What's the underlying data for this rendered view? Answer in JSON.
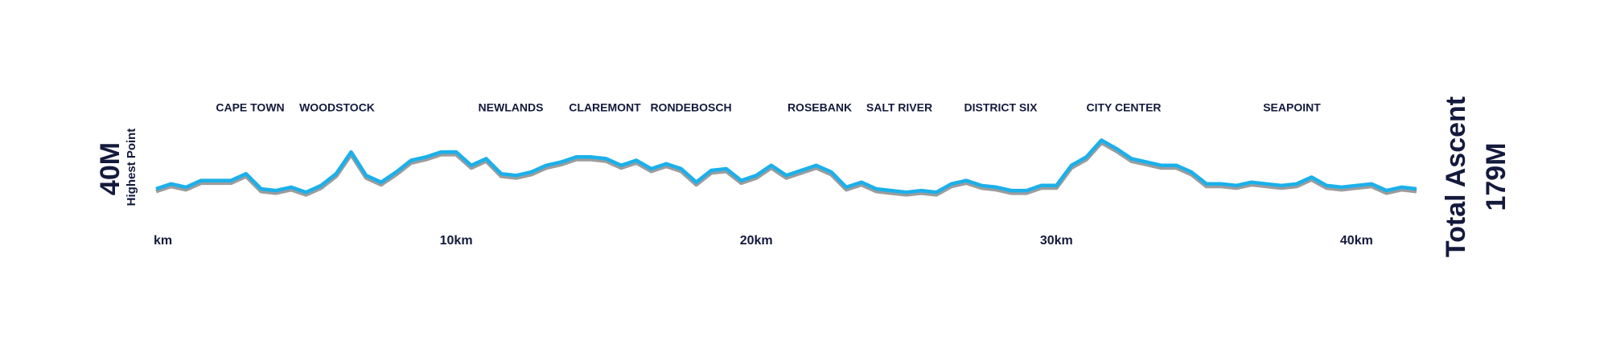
{
  "chart_data": {
    "type": "line",
    "locations": [
      "CAPE TOWN",
      "WOODSTOCK",
      "NEWLANDS",
      "CLAREMONT",
      "RONDEBOSCH",
      "ROSEBANK",
      "SALT RIVER",
      "DISTRICT SIX",
      "CITY CENTER",
      "SEAPOINT"
    ],
    "highest_value": "40M",
    "highest_caption": "Highest Point",
    "total_caption": "Total Ascent",
    "total_value": "179M",
    "x": [
      0,
      0.5,
      1,
      1.5,
      2,
      2.5,
      3,
      3.5,
      4,
      4.5,
      5,
      5.5,
      6,
      6.5,
      7,
      7.5,
      8,
      8.5,
      9,
      9.5,
      10,
      10.5,
      11,
      11.5,
      12,
      12.5,
      13,
      13.5,
      14,
      14.5,
      15,
      15.5,
      16,
      16.5,
      17,
      17.5,
      18,
      18.5,
      19,
      19.5,
      20,
      20.5,
      21,
      21.5,
      22,
      22.5,
      23,
      23.5,
      24,
      24.5,
      25,
      25.5,
      26,
      26.5,
      27,
      27.5,
      28,
      28.5,
      29,
      29.5,
      30,
      30.5,
      31,
      31.5,
      32,
      32.5,
      33,
      33.5,
      34,
      34.5,
      35,
      35.5,
      36,
      36.5,
      37,
      37.5,
      38,
      38.5,
      39,
      39.5,
      40,
      40.5,
      41,
      41.5,
      42
    ],
    "values": [
      11,
      14,
      12,
      16,
      16,
      16,
      20,
      11,
      10,
      12,
      9,
      13,
      20,
      33,
      19,
      15,
      21,
      28,
      30,
      33,
      33,
      25,
      29,
      20,
      19,
      21,
      25,
      27,
      30,
      30,
      29,
      25,
      28,
      23,
      26,
      23,
      15,
      22,
      23,
      16,
      19,
      25,
      19,
      22,
      25,
      21,
      12,
      15,
      11,
      10,
      9,
      10,
      9,
      14,
      16,
      13,
      12,
      10,
      10,
      13,
      13,
      25,
      30,
      40,
      35,
      29,
      27,
      25,
      25,
      21,
      14,
      14,
      13,
      15,
      14,
      13,
      14,
      18,
      13,
      12,
      13,
      14,
      10,
      12,
      11
    ],
    "color": "#1bb0ea",
    "shadow_color": "#9c9c9c",
    "xlim": [
      0,
      42
    ],
    "ylim": [
      0,
      45
    ],
    "xticks": [
      {
        "value": 0,
        "label": "km"
      },
      {
        "value": 10,
        "label": "10km"
      },
      {
        "value": 20,
        "label": "20km"
      },
      {
        "value": 30,
        "label": "30km"
      },
      {
        "value": 40,
        "label": "40km"
      }
    ],
    "grid": false
  }
}
